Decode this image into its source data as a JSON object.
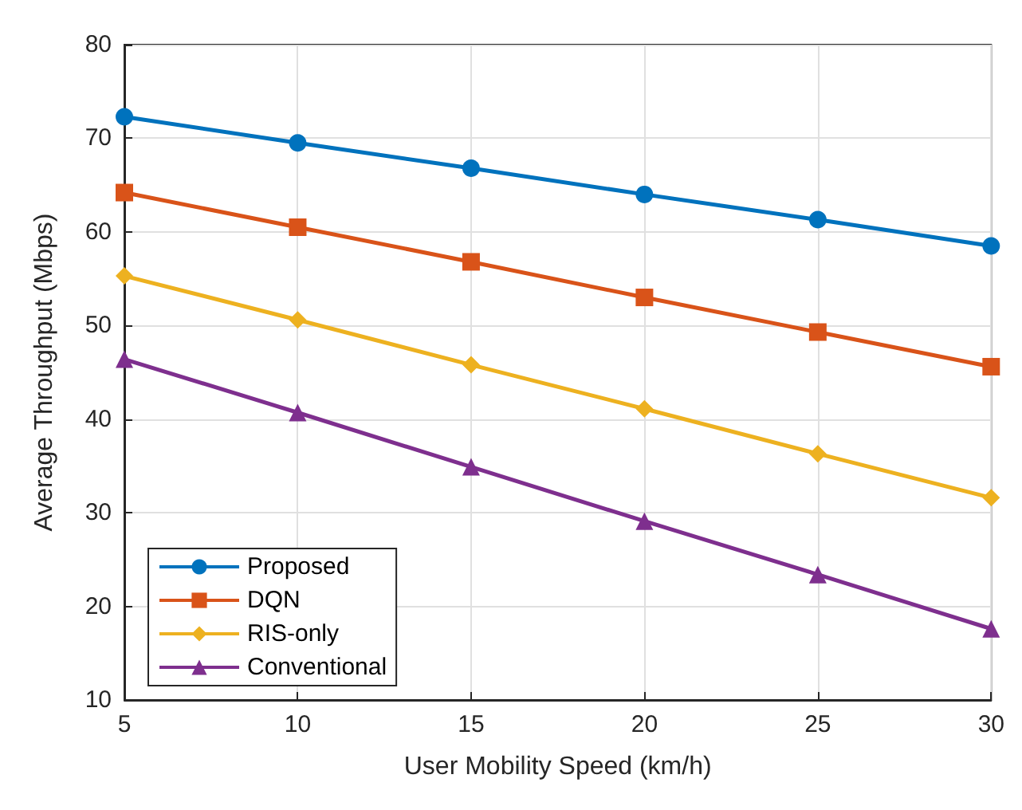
{
  "chart_data": {
    "type": "line",
    "xlabel": "User Mobility Speed (km/h)",
    "ylabel": "Average Throughput (Mbps)",
    "x": [
      5,
      10,
      15,
      20,
      25,
      30
    ],
    "xlim": [
      5,
      30
    ],
    "xticks": [
      5,
      10,
      15,
      20,
      25,
      30
    ],
    "ylim": [
      10,
      80
    ],
    "yticks": [
      10,
      20,
      30,
      40,
      50,
      60,
      70,
      80
    ],
    "grid": true,
    "legend": "bottom left",
    "line_style": "solid",
    "series": [
      {
        "name": "Proposed",
        "color": "#0072bd",
        "marker": "circle",
        "values": [
          72.3,
          69.5,
          66.8,
          64.0,
          61.3,
          58.5
        ]
      },
      {
        "name": "DQN",
        "color": "#d95319",
        "marker": "square",
        "values": [
          64.2,
          60.5,
          56.8,
          53.0,
          49.3,
          45.6
        ]
      },
      {
        "name": "RIS-only",
        "color": "#edb120",
        "marker": "diamond",
        "values": [
          55.3,
          50.6,
          45.8,
          41.1,
          36.3,
          31.6
        ]
      },
      {
        "name": "Conventional",
        "color": "#7e2f8e",
        "marker": "triangle",
        "values": [
          46.4,
          40.7,
          34.9,
          29.1,
          23.4,
          17.6
        ]
      }
    ]
  }
}
